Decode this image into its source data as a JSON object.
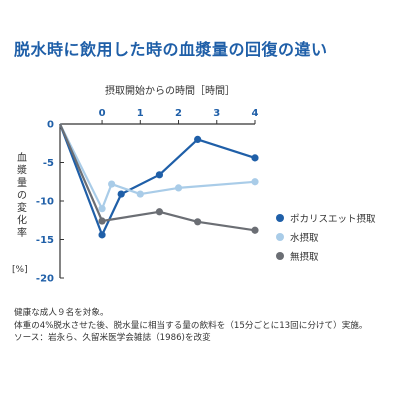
{
  "title": "脱水時に飲用した時の血漿量の回復の違い",
  "chart_data": {
    "type": "line",
    "x_axis_label": "摂取開始からの時間［時間］",
    "y_axis_label": "血漿量の変化率",
    "y_unit": "[%]",
    "x_ticks": [
      0,
      1,
      2,
      3,
      4
    ],
    "y_ticks": [
      0,
      -5,
      -10,
      -15,
      -20
    ],
    "xlim": [
      -1.1,
      4
    ],
    "ylim": [
      -20,
      0
    ],
    "grid": false,
    "legend_position": "right",
    "series": [
      {
        "name": "ポカリスエット摂取",
        "color": "#1f5fa8",
        "points": [
          [
            -1.1,
            0
          ],
          [
            0,
            -14.4
          ],
          [
            0.5,
            -9.1
          ],
          [
            1.5,
            -6.6
          ],
          [
            2.5,
            -2.0
          ],
          [
            4,
            -4.4
          ]
        ]
      },
      {
        "name": "水摂取",
        "color": "#a9cce8",
        "points": [
          [
            -1.1,
            0
          ],
          [
            0,
            -11.0
          ],
          [
            0.25,
            -7.8
          ],
          [
            1.0,
            -9.1
          ],
          [
            2.0,
            -8.3
          ],
          [
            4,
            -7.5
          ]
        ]
      },
      {
        "name": "無摂取",
        "color": "#6b6e74",
        "points": [
          [
            -1.1,
            0
          ],
          [
            0,
            -12.6
          ],
          [
            1.5,
            -11.4
          ],
          [
            2.5,
            -12.7
          ],
          [
            4,
            -13.8
          ]
        ]
      }
    ]
  },
  "notes": [
    "健康な成人９名を対象。",
    "体重の4%脱水させた後、脱水量に相当する量の飲料を（15分ごとに13回に分けて）実施。",
    "ソース：岩永ら、久留米医学会雑誌（1986)を改変"
  ]
}
